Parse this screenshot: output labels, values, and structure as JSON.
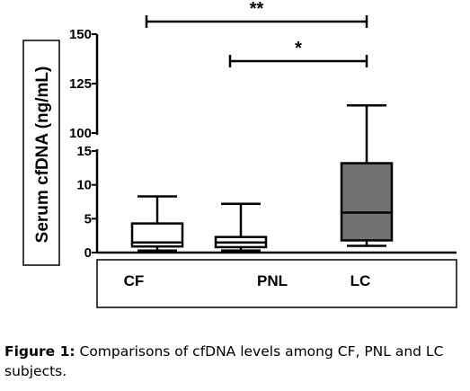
{
  "chart_data": {
    "type": "boxplot",
    "ylabel": "Serum cfDNA (ng/mL)",
    "categories": [
      "CF",
      "PNL",
      "LC"
    ],
    "y_axis_upper": {
      "range": [
        100,
        150
      ],
      "ticks": [
        "150",
        "125",
        "100"
      ],
      "tick_values": [
        150,
        125,
        100
      ]
    },
    "y_axis_lower": {
      "range": [
        0,
        15
      ],
      "ticks": [
        "15",
        "10",
        "5",
        "0"
      ],
      "tick_values": [
        15,
        10,
        5,
        0
      ]
    },
    "boxes": [
      {
        "category": "CF",
        "min": 0.3,
        "q1": 0.9,
        "median": 1.5,
        "q3": 4.3,
        "max": 8.3,
        "fill": "#ffffff"
      },
      {
        "category": "PNL",
        "min": 0.3,
        "q1": 0.8,
        "median": 1.5,
        "q3": 2.3,
        "max": 7.2,
        "fill": "#ffffff"
      },
      {
        "category": "LC",
        "min": 1.0,
        "q1": 1.8,
        "median": 5.9,
        "q3": 13.2,
        "max": 114,
        "fill": "#707070"
      }
    ],
    "significance": [
      {
        "from": "CF",
        "to": "LC",
        "label": "**"
      },
      {
        "from": "PNL",
        "to": "LC",
        "label": "*"
      }
    ]
  },
  "caption": {
    "label": "Figure 1:",
    "text": " Comparisons of cfDNA levels among CF, PNL and LC subjects."
  }
}
